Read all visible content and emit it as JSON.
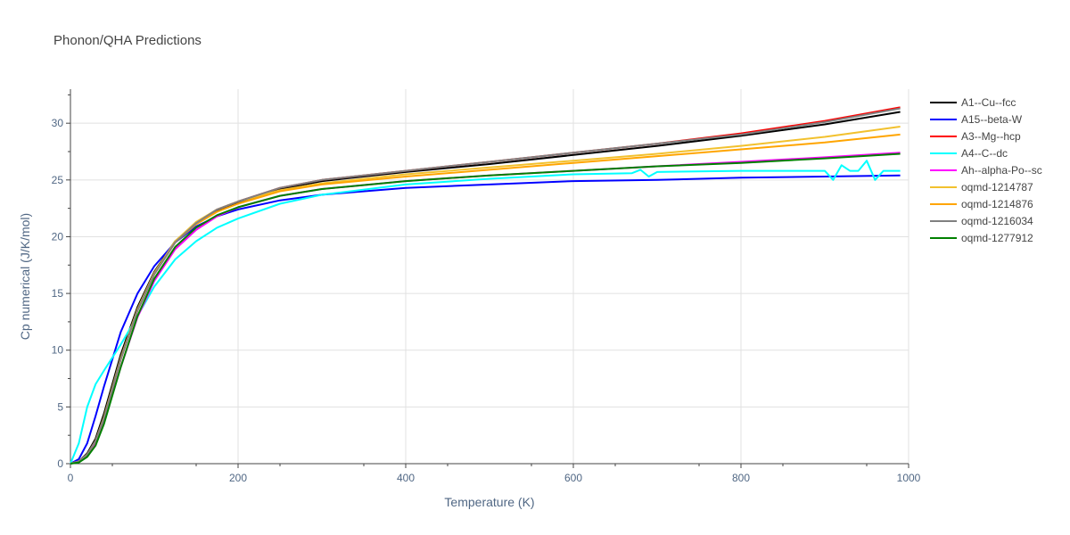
{
  "chart_data": {
    "type": "line",
    "title": "Phonon/QHA Predictions",
    "xlabel": "Temperature (K)",
    "ylabel": "Cp numerical (J/K/mol)",
    "xlim": [
      0,
      1000
    ],
    "ylim": [
      0,
      33
    ],
    "xticks": [
      0,
      200,
      400,
      600,
      800,
      1000
    ],
    "yticks": [
      0,
      5,
      10,
      15,
      20,
      25,
      30
    ],
    "grid": true,
    "legend_position": "top-right",
    "series": [
      {
        "name": "A1--Cu--fcc",
        "color": "#000000",
        "x": [
          0,
          10,
          20,
          30,
          40,
          60,
          80,
          100,
          125,
          150,
          175,
          200,
          250,
          300,
          400,
          500,
          600,
          700,
          800,
          900,
          990
        ],
        "y": [
          0,
          0.2,
          0.9,
          2.2,
          4.4,
          9.6,
          13.8,
          16.9,
          19.6,
          21.2,
          22.3,
          23.0,
          24.2,
          24.9,
          25.7,
          26.4,
          27.2,
          28.0,
          28.9,
          29.9,
          31.0
        ]
      },
      {
        "name": "A15--beta-W",
        "color": "#0000ff",
        "x": [
          0,
          10,
          20,
          30,
          40,
          60,
          80,
          100,
          125,
          150,
          175,
          200,
          250,
          300,
          400,
          500,
          600,
          700,
          800,
          900,
          990
        ],
        "y": [
          0,
          0.4,
          1.8,
          4.2,
          6.8,
          11.6,
          15.0,
          17.4,
          19.5,
          20.9,
          21.8,
          22.4,
          23.2,
          23.7,
          24.3,
          24.6,
          24.9,
          25.0,
          25.2,
          25.3,
          25.4
        ]
      },
      {
        "name": "A3--Mg--hcp",
        "color": "#ff0000",
        "x": [
          0,
          10,
          20,
          30,
          40,
          60,
          80,
          100,
          125,
          150,
          175,
          200,
          250,
          300,
          400,
          500,
          600,
          700,
          800,
          900,
          990
        ],
        "y": [
          0,
          0.2,
          0.8,
          2.0,
          4.0,
          9.2,
          13.5,
          16.7,
          19.5,
          21.2,
          22.4,
          23.1,
          24.3,
          25.0,
          25.8,
          26.6,
          27.4,
          28.2,
          29.1,
          30.2,
          31.4
        ]
      },
      {
        "name": "A4--C--dc",
        "color": "#00ffff",
        "x": [
          0,
          10,
          20,
          30,
          40,
          60,
          80,
          100,
          125,
          150,
          175,
          200,
          250,
          300,
          400,
          500,
          600,
          670,
          680,
          690,
          700,
          800,
          900,
          910,
          920,
          930,
          940,
          950,
          960,
          970,
          990
        ],
        "y": [
          0,
          1.8,
          5.0,
          7.0,
          8.2,
          10.5,
          13.0,
          15.6,
          18.0,
          19.6,
          20.8,
          21.6,
          22.9,
          23.7,
          24.6,
          25.1,
          25.5,
          25.6,
          25.9,
          25.3,
          25.7,
          25.8,
          25.8,
          25.0,
          26.3,
          25.8,
          25.8,
          26.7,
          25.0,
          25.8,
          25.8
        ]
      },
      {
        "name": "Ah--alpha-Po--sc",
        "color": "#ff00ff",
        "x": [
          0,
          10,
          20,
          30,
          40,
          60,
          80,
          100,
          125,
          150,
          175,
          200,
          250,
          300,
          400,
          500,
          600,
          700,
          800,
          900,
          990
        ],
        "y": [
          0,
          0.2,
          0.7,
          1.8,
          3.7,
          8.5,
          12.9,
          16.1,
          18.9,
          20.6,
          21.8,
          22.6,
          23.6,
          24.2,
          24.9,
          25.4,
          25.8,
          26.2,
          26.6,
          27.0,
          27.4
        ]
      },
      {
        "name": "oqmd-1214787",
        "color": "#f2c12e",
        "x": [
          0,
          10,
          20,
          30,
          40,
          60,
          80,
          100,
          125,
          150,
          175,
          200,
          250,
          300,
          400,
          500,
          600,
          700,
          800,
          900,
          990
        ],
        "y": [
          0,
          0.2,
          0.8,
          2.0,
          4.1,
          9.3,
          13.6,
          16.8,
          19.6,
          21.3,
          22.4,
          23.1,
          24.1,
          24.7,
          25.5,
          26.1,
          26.7,
          27.3,
          28.0,
          28.8,
          29.7
        ]
      },
      {
        "name": "oqmd-1214876",
        "color": "#ffa500",
        "x": [
          0,
          10,
          20,
          30,
          40,
          60,
          80,
          100,
          125,
          150,
          175,
          200,
          250,
          300,
          400,
          500,
          600,
          700,
          800,
          900,
          990
        ],
        "y": [
          0,
          0.2,
          0.8,
          2.0,
          4.0,
          9.2,
          13.5,
          16.7,
          19.5,
          21.1,
          22.2,
          22.9,
          24.0,
          24.6,
          25.3,
          25.9,
          26.5,
          27.1,
          27.7,
          28.3,
          29.0
        ]
      },
      {
        "name": "oqmd-1216034",
        "color": "#808080",
        "x": [
          0,
          10,
          20,
          30,
          40,
          60,
          80,
          100,
          125,
          150,
          175,
          200,
          250,
          300,
          400,
          500,
          600,
          700,
          800,
          900,
          990
        ],
        "y": [
          0,
          0.2,
          0.8,
          2.0,
          4.0,
          9.2,
          13.5,
          16.7,
          19.5,
          21.2,
          22.4,
          23.1,
          24.3,
          25.0,
          25.8,
          26.6,
          27.4,
          28.2,
          29.0,
          30.1,
          31.3
        ]
      },
      {
        "name": "oqmd-1277912",
        "color": "#008000",
        "x": [
          0,
          10,
          20,
          30,
          40,
          60,
          80,
          100,
          125,
          150,
          175,
          200,
          250,
          300,
          400,
          500,
          600,
          700,
          800,
          900,
          990
        ],
        "y": [
          0,
          0.1,
          0.6,
          1.6,
          3.5,
          8.5,
          13.0,
          16.3,
          19.1,
          20.8,
          21.9,
          22.6,
          23.6,
          24.2,
          24.9,
          25.4,
          25.8,
          26.2,
          26.5,
          26.9,
          27.3
        ]
      }
    ]
  }
}
